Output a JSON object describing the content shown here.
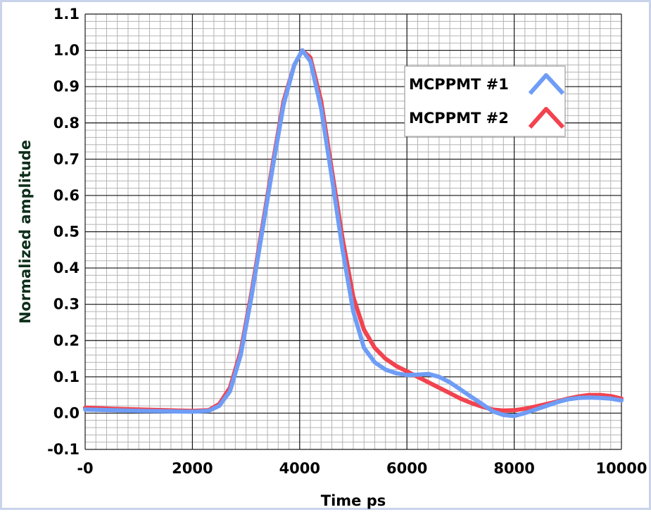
{
  "chart_data": {
    "type": "line",
    "title": "",
    "xlabel": "Time ps",
    "ylabel": "Normalized amplitude",
    "xlim": [
      0,
      10000
    ],
    "ylim": [
      -0.1,
      1.1
    ],
    "grid": true,
    "legend_position": "top-right",
    "x_tick_labels": [
      "-0",
      "2000",
      "4000",
      "6000",
      "8000",
      "10000"
    ],
    "y_tick_labels": [
      "-0.1",
      "0.0",
      "0.1",
      "0.2",
      "0.3",
      "0.4",
      "0.5",
      "0.6",
      "0.7",
      "0.8",
      "0.9",
      "1.0",
      "1.1"
    ],
    "series": [
      {
        "name": "MCPPMT #1",
        "color": "#6f9df6",
        "x": [
          0,
          500,
          1000,
          1500,
          2000,
          2300,
          2500,
          2700,
          2900,
          3100,
          3300,
          3500,
          3700,
          3900,
          4050,
          4200,
          4400,
          4600,
          4800,
          5000,
          5200,
          5400,
          5600,
          5800,
          6000,
          6200,
          6400,
          6600,
          6800,
          7000,
          7200,
          7400,
          7600,
          7800,
          8000,
          8200,
          8400,
          8600,
          8800,
          9000,
          9200,
          9400,
          9600,
          9800,
          10000
        ],
        "y": [
          0.01,
          0.008,
          0.006,
          0.005,
          0.004,
          0.006,
          0.02,
          0.06,
          0.16,
          0.32,
          0.5,
          0.68,
          0.85,
          0.96,
          1.0,
          0.97,
          0.84,
          0.65,
          0.45,
          0.28,
          0.18,
          0.14,
          0.12,
          0.11,
          0.105,
          0.106,
          0.108,
          0.1,
          0.085,
          0.065,
          0.045,
          0.025,
          0.005,
          -0.005,
          -0.008,
          0.0,
          0.01,
          0.02,
          0.03,
          0.038,
          0.042,
          0.043,
          0.042,
          0.04,
          0.035
        ]
      },
      {
        "name": "MCPPMT #2",
        "color": "#f2434f",
        "x": [
          0,
          500,
          1000,
          1500,
          2000,
          2300,
          2500,
          2700,
          2900,
          3100,
          3300,
          3500,
          3700,
          3900,
          4050,
          4200,
          4400,
          4600,
          4800,
          5000,
          5200,
          5400,
          5600,
          5800,
          6000,
          6200,
          6400,
          6600,
          6800,
          7000,
          7200,
          7400,
          7600,
          7800,
          8000,
          8200,
          8400,
          8600,
          8800,
          9000,
          9200,
          9400,
          9600,
          9800,
          10000
        ],
        "y": [
          0.015,
          0.012,
          0.01,
          0.008,
          0.006,
          0.008,
          0.025,
          0.07,
          0.17,
          0.33,
          0.51,
          0.69,
          0.86,
          0.96,
          1.0,
          0.98,
          0.86,
          0.67,
          0.48,
          0.32,
          0.23,
          0.18,
          0.15,
          0.13,
          0.115,
          0.1,
          0.085,
          0.07,
          0.055,
          0.04,
          0.028,
          0.018,
          0.01,
          0.007,
          0.008,
          0.012,
          0.018,
          0.025,
          0.032,
          0.04,
          0.046,
          0.05,
          0.05,
          0.047,
          0.04
        ]
      }
    ]
  }
}
